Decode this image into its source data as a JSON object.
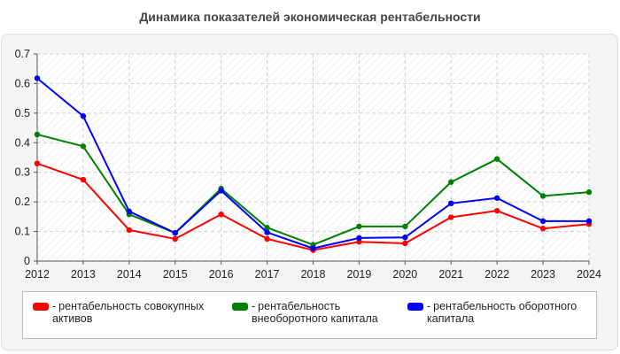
{
  "chart_data": {
    "type": "line",
    "title": "Динамика показателей экономическая рентабельности",
    "x": [
      "2012",
      "2013",
      "2014",
      "2015",
      "2016",
      "2017",
      "2018",
      "2019",
      "2020",
      "2021",
      "2022",
      "2023",
      "2024"
    ],
    "ylim": [
      0,
      0.7
    ],
    "yticks": [
      "0",
      "0.1",
      "0.2",
      "0.3",
      "0.4",
      "0.5",
      "0.6",
      "0.7"
    ],
    "grid": true,
    "legend_position": "bottom",
    "series": [
      {
        "name": "рентабельность совокупных активов",
        "color": "#ff0000",
        "values": [
          0.33,
          0.275,
          0.105,
          0.075,
          0.158,
          0.075,
          0.037,
          0.065,
          0.06,
          0.148,
          0.17,
          0.11,
          0.125
        ]
      },
      {
        "name": "рентабельность внеоборотного капитала",
        "color": "#008000",
        "values": [
          0.428,
          0.388,
          0.158,
          0.095,
          0.245,
          0.113,
          0.055,
          0.117,
          0.117,
          0.267,
          0.345,
          0.22,
          0.233
        ]
      },
      {
        "name": "рентабельность оборотного капитала",
        "color": "#0000ff",
        "values": [
          0.618,
          0.49,
          0.168,
          0.095,
          0.238,
          0.097,
          0.043,
          0.078,
          0.08,
          0.195,
          0.213,
          0.135,
          0.135
        ]
      }
    ]
  }
}
